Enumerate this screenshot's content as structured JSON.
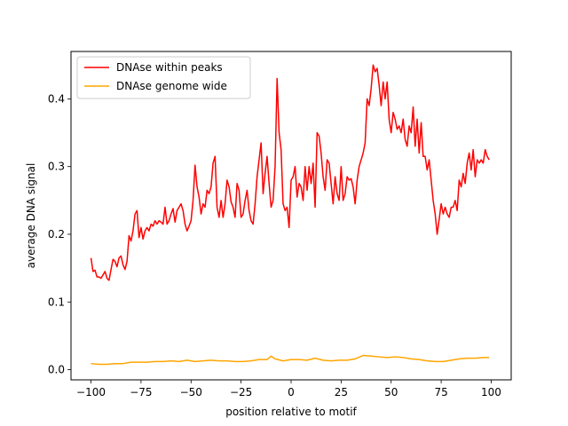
{
  "chart_data": {
    "type": "line",
    "title": "",
    "xlabel": "position relative to motif",
    "ylabel": "average DNA signal",
    "xlim": [
      -110,
      110
    ],
    "ylim": [
      -0.015,
      0.47
    ],
    "xticks": [
      -100,
      -75,
      -50,
      -25,
      0,
      25,
      50,
      75,
      100
    ],
    "yticks": [
      0.0,
      0.1,
      0.2,
      0.3,
      0.4
    ],
    "ytick_labels": [
      "0.0",
      "0.1",
      "0.2",
      "0.3",
      "0.4"
    ],
    "grid": false,
    "legend_position": "upper-left",
    "series": [
      {
        "name": "DNAse within peaks",
        "color": "#ff0000",
        "x": [
          -100,
          -99,
          -98,
          -97,
          -96,
          -95,
          -94,
          -93,
          -92,
          -91,
          -90,
          -89,
          -88,
          -87,
          -86,
          -85,
          -84,
          -83,
          -82,
          -81,
          -80,
          -79,
          -78,
          -77,
          -76,
          -75,
          -74,
          -73,
          -72,
          -71,
          -70,
          -69,
          -68,
          -67,
          -66,
          -65,
          -64,
          -63,
          -62,
          -61,
          -60,
          -59,
          -58,
          -57,
          -56,
          -55,
          -54,
          -53,
          -52,
          -51,
          -50,
          -49,
          -48,
          -47,
          -46,
          -45,
          -44,
          -43,
          -42,
          -41,
          -40,
          -39,
          -38,
          -37,
          -36,
          -35,
          -34,
          -33,
          -32,
          -31,
          -30,
          -29,
          -28,
          -27,
          -26,
          -25,
          -24,
          -23,
          -22,
          -21,
          -20,
          -19,
          -18,
          -17,
          -16,
          -15,
          -14,
          -13,
          -12,
          -11,
          -10,
          -9,
          -8,
          -7,
          -6,
          -5,
          -4,
          -3,
          -2,
          -1,
          0,
          1,
          2,
          3,
          4,
          5,
          6,
          7,
          8,
          9,
          10,
          11,
          12,
          13,
          14,
          15,
          16,
          17,
          18,
          19,
          20,
          21,
          22,
          23,
          24,
          25,
          26,
          27,
          28,
          29,
          30,
          31,
          32,
          33,
          34,
          35,
          36,
          37,
          38,
          39,
          40,
          41,
          42,
          43,
          44,
          45,
          46,
          47,
          48,
          49,
          50,
          51,
          52,
          53,
          54,
          55,
          56,
          57,
          58,
          59,
          60,
          61,
          62,
          63,
          64,
          65,
          66,
          67,
          68,
          69,
          70,
          71,
          72,
          73,
          74,
          75,
          76,
          77,
          78,
          79,
          80,
          81,
          82,
          83,
          84,
          85,
          86,
          87,
          88,
          89,
          90,
          91,
          92,
          93,
          94,
          95,
          96,
          97,
          98,
          99
        ],
        "y": [
          0.165,
          0.145,
          0.147,
          0.137,
          0.137,
          0.135,
          0.14,
          0.145,
          0.135,
          0.132,
          0.148,
          0.163,
          0.16,
          0.152,
          0.165,
          0.168,
          0.155,
          0.148,
          0.16,
          0.198,
          0.19,
          0.205,
          0.23,
          0.235,
          0.195,
          0.21,
          0.193,
          0.205,
          0.21,
          0.205,
          0.215,
          0.212,
          0.22,
          0.215,
          0.22,
          0.218,
          0.215,
          0.24,
          0.215,
          0.22,
          0.23,
          0.238,
          0.218,
          0.235,
          0.24,
          0.245,
          0.235,
          0.215,
          0.205,
          0.212,
          0.22,
          0.25,
          0.302,
          0.27,
          0.255,
          0.23,
          0.245,
          0.24,
          0.265,
          0.26,
          0.27,
          0.305,
          0.315,
          0.24,
          0.225,
          0.25,
          0.225,
          0.245,
          0.28,
          0.27,
          0.248,
          0.24,
          0.225,
          0.275,
          0.265,
          0.225,
          0.23,
          0.25,
          0.265,
          0.235,
          0.22,
          0.215,
          0.245,
          0.285,
          0.31,
          0.335,
          0.26,
          0.29,
          0.315,
          0.275,
          0.24,
          0.25,
          0.3,
          0.43,
          0.35,
          0.325,
          0.245,
          0.235,
          0.24,
          0.21,
          0.28,
          0.285,
          0.3,
          0.255,
          0.275,
          0.27,
          0.25,
          0.3,
          0.265,
          0.3,
          0.275,
          0.305,
          0.24,
          0.35,
          0.345,
          0.32,
          0.285,
          0.265,
          0.31,
          0.305,
          0.275,
          0.245,
          0.285,
          0.26,
          0.25,
          0.3,
          0.25,
          0.26,
          0.285,
          0.28,
          0.282,
          0.27,
          0.245,
          0.28,
          0.3,
          0.31,
          0.32,
          0.335,
          0.4,
          0.39,
          0.415,
          0.45,
          0.44,
          0.445,
          0.42,
          0.39,
          0.425,
          0.4,
          0.425,
          0.37,
          0.35,
          0.38,
          0.37,
          0.355,
          0.36,
          0.35,
          0.37,
          0.34,
          0.33,
          0.36,
          0.35,
          0.388,
          0.33,
          0.37,
          0.32,
          0.365,
          0.315,
          0.315,
          0.295,
          0.31,
          0.28,
          0.25,
          0.23,
          0.2,
          0.222,
          0.245,
          0.23,
          0.24,
          0.23,
          0.225,
          0.24,
          0.24,
          0.25,
          0.235,
          0.28,
          0.27,
          0.29,
          0.275,
          0.305,
          0.32,
          0.295,
          0.325,
          0.285,
          0.31,
          0.305,
          0.31,
          0.305,
          0.325,
          0.315,
          0.31
        ]
      },
      {
        "name": "DNAse genome wide",
        "color": "#ffa500",
        "x": [
          -100,
          -96,
          -92,
          -88,
          -84,
          -80,
          -76,
          -72,
          -68,
          -64,
          -60,
          -56,
          -52,
          -48,
          -44,
          -40,
          -36,
          -32,
          -28,
          -24,
          -20,
          -16,
          -12,
          -10,
          -8,
          -4,
          0,
          4,
          8,
          12,
          16,
          20,
          24,
          28,
          32,
          36,
          40,
          44,
          48,
          52,
          56,
          60,
          64,
          68,
          72,
          76,
          80,
          84,
          88,
          92,
          96,
          99
        ],
        "y": [
          0.009,
          0.008,
          0.008,
          0.009,
          0.009,
          0.011,
          0.011,
          0.011,
          0.012,
          0.012,
          0.013,
          0.012,
          0.014,
          0.012,
          0.013,
          0.014,
          0.013,
          0.013,
          0.012,
          0.012,
          0.013,
          0.015,
          0.015,
          0.02,
          0.016,
          0.013,
          0.015,
          0.015,
          0.014,
          0.017,
          0.014,
          0.013,
          0.014,
          0.014,
          0.016,
          0.021,
          0.02,
          0.019,
          0.018,
          0.019,
          0.018,
          0.016,
          0.015,
          0.013,
          0.012,
          0.012,
          0.014,
          0.016,
          0.017,
          0.017,
          0.018,
          0.018
        ]
      }
    ]
  }
}
